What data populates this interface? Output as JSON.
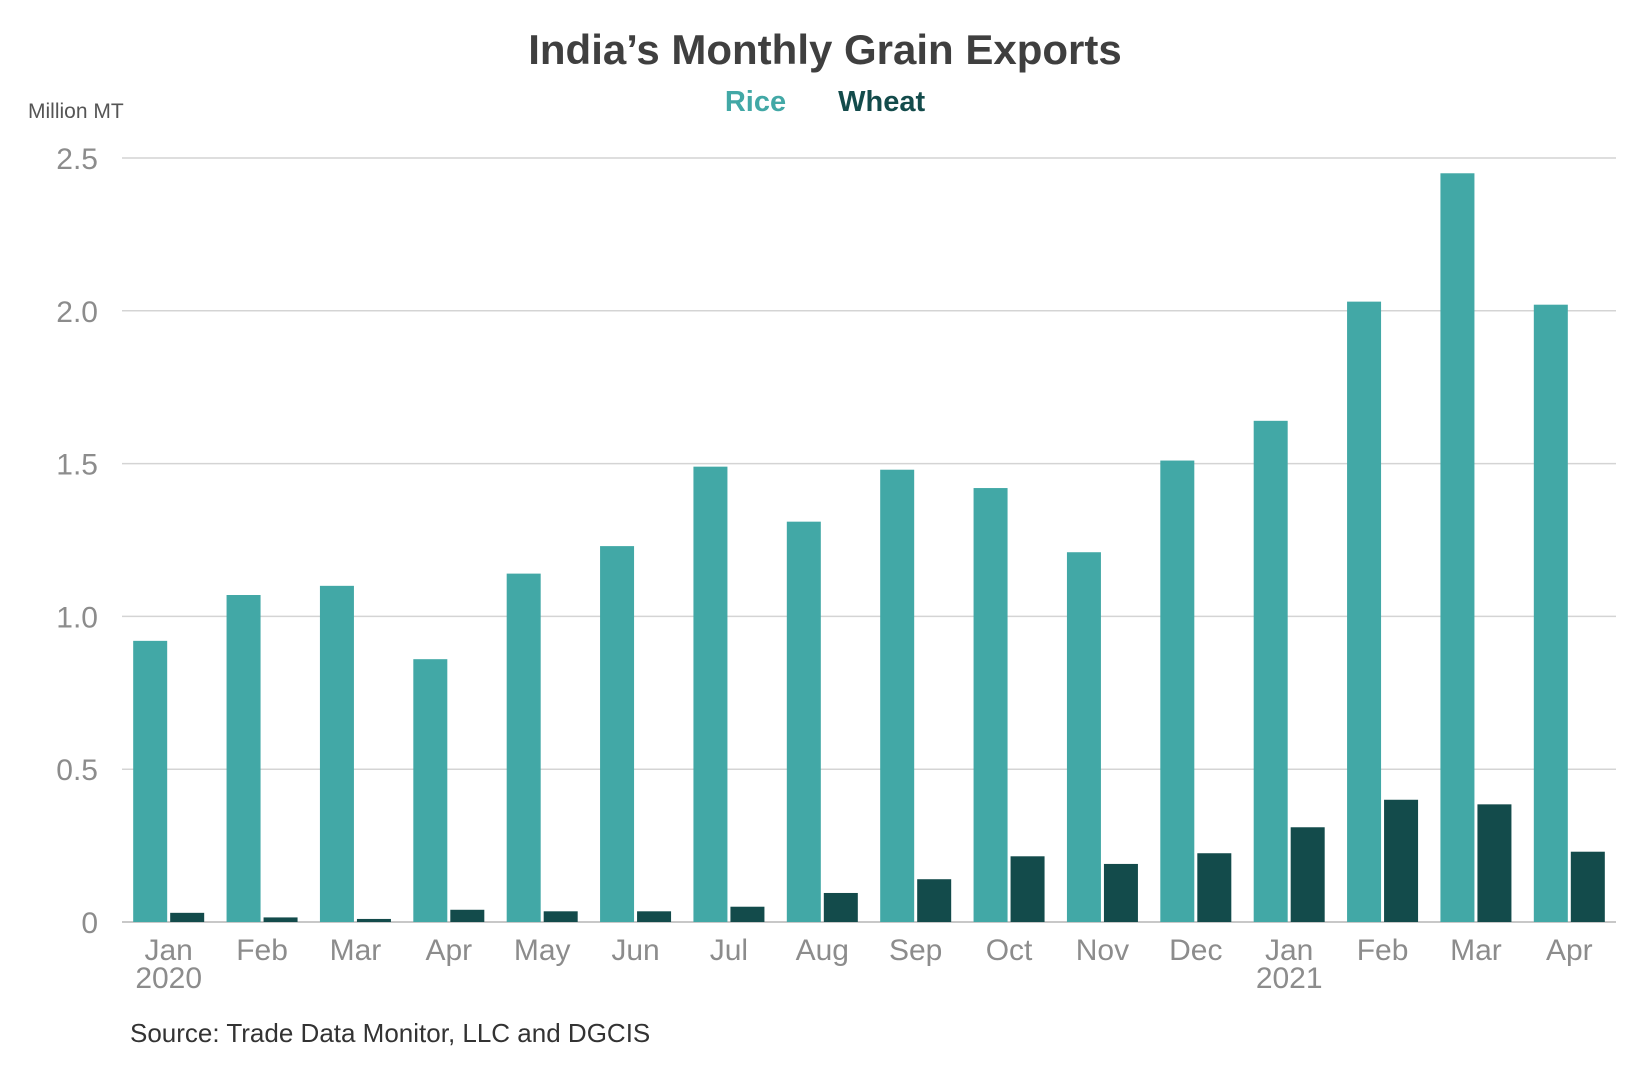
{
  "chart_data": {
    "type": "bar",
    "title": "India’s Monthly Grain Exports",
    "ylabel": "Million MT",
    "ylim": [
      0,
      2.5
    ],
    "yticks": [
      0,
      0.5,
      1.0,
      1.5,
      2.0,
      2.5
    ],
    "ytick_labels": [
      "0",
      "0.5",
      "1.0",
      "1.5",
      "2.0",
      "2.5"
    ],
    "categories": [
      "Jan",
      "Feb",
      "Mar",
      "Apr",
      "May",
      "Jun",
      "Jul",
      "Aug",
      "Sep",
      "Oct",
      "Nov",
      "Dec",
      "Jan",
      "Feb",
      "Mar",
      "Apr"
    ],
    "category_sublabels": [
      "2020",
      "",
      "",
      "",
      "",
      "",
      "",
      "",
      "",
      "",
      "",
      "",
      "2021",
      "",
      "",
      ""
    ],
    "series": [
      {
        "name": "Rice",
        "color": "#42a8a6",
        "values": [
          0.92,
          1.07,
          1.1,
          0.86,
          1.14,
          1.23,
          1.49,
          1.31,
          1.48,
          1.42,
          1.21,
          1.51,
          1.64,
          2.03,
          2.45,
          2.02
        ]
      },
      {
        "name": "Wheat",
        "color": "#134b4b",
        "values": [
          0.03,
          0.015,
          0.01,
          0.04,
          0.035,
          0.035,
          0.05,
          0.095,
          0.14,
          0.215,
          0.19,
          0.225,
          0.31,
          0.4,
          0.385,
          0.23
        ]
      }
    ],
    "grid": true,
    "legend": "top-center"
  },
  "source": "Source: Trade Data Monitor, LLC and DGCIS"
}
